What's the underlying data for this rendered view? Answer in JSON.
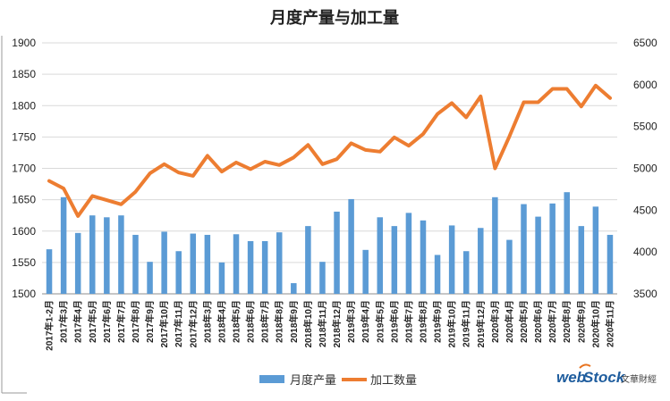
{
  "brand": {
    "logo_word_left": "web",
    "logo_word_right": "Stock",
    "tagline": "文華財經"
  },
  "chart_data": {
    "type": "bar",
    "title": "月度产量与加工量",
    "categories": [
      "2017年1-2月",
      "2017年3月",
      "2017年4月",
      "2017年5月",
      "2017年6月",
      "2017年7月",
      "2017年8月",
      "2017年9月",
      "2017年10月",
      "2017年11月",
      "2017年12月",
      "2018年3月",
      "2018年4月",
      "2018年5月",
      "2018年6月",
      "2018年7月",
      "2018年8月",
      "2018年9月",
      "2018年10月",
      "2018年11月",
      "2018年12月",
      "2019年3月",
      "2019年4月",
      "2019年5月",
      "2019年6月",
      "2019年7月",
      "2019年8月",
      "2019年9月",
      "2019年10月",
      "2019年11月",
      "2019年12月",
      "2020年3月",
      "2020年4月",
      "2020年5月",
      "2020年6月",
      "2020年7月",
      "2020年8月",
      "2020年9月",
      "2020年10月",
      "2020年11月"
    ],
    "series": [
      {
        "name": "月度产量",
        "type": "bar",
        "axis": "left",
        "color": "#5b9bd5",
        "values": [
          1571,
          1654,
          1597,
          1625,
          1622,
          1625,
          1594,
          1551,
          1599,
          1568,
          1596,
          1594,
          1550,
          1595,
          1584,
          1584,
          1598,
          1517,
          1608,
          1551,
          1631,
          1651,
          1570,
          1622,
          1608,
          1629,
          1617,
          1562,
          1609,
          1568,
          1605,
          1654,
          1586,
          1643,
          1623,
          1644,
          1662,
          1608,
          1639,
          1594
        ]
      },
      {
        "name": "加工数量",
        "type": "line",
        "axis": "right",
        "color": "#ed7d31",
        "values": [
          4850,
          4760,
          4430,
          4670,
          4620,
          4570,
          4720,
          4940,
          5050,
          4950,
          4910,
          5150,
          4960,
          5070,
          4990,
          5080,
          5040,
          5130,
          5280,
          5050,
          5110,
          5300,
          5220,
          5200,
          5370,
          5270,
          5410,
          5650,
          5780,
          5610,
          5860,
          5000,
          5380,
          5790,
          5790,
          5950,
          5950,
          5740,
          5990,
          5840
        ]
      }
    ],
    "y_left": {
      "min": 1500,
      "max": 1900,
      "ticks": [
        1500,
        1550,
        1600,
        1650,
        1700,
        1750,
        1800,
        1850,
        1900
      ]
    },
    "y_right": {
      "min": 3500,
      "max": 6500,
      "ticks": [
        3500,
        4000,
        4500,
        5000,
        5500,
        6000,
        6500
      ]
    },
    "grid": true,
    "legend_position": "bottom"
  }
}
